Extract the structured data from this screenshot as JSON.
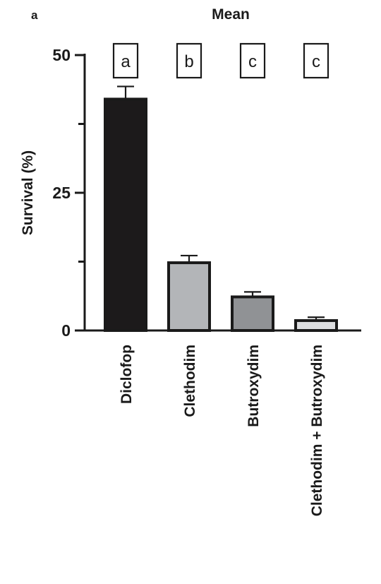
{
  "panel_label": "a",
  "chart_data": {
    "type": "bar",
    "title": "Mean",
    "ylabel": "Survival (%)",
    "xlabel": "",
    "ylim": [
      0,
      50
    ],
    "yticks_major": [
      0,
      25,
      50
    ],
    "yticks_minor": [
      12.5,
      37.5
    ],
    "categories": [
      "Diclofop",
      "Clethodim",
      "Butroxydim",
      "Clethodim + Butroxydim"
    ],
    "values": [
      42,
      12.3,
      6.1,
      1.8
    ],
    "errors": [
      2.3,
      1.3,
      0.9,
      0.6
    ],
    "significance_letters": [
      "a",
      "b",
      "c",
      "c"
    ],
    "colors": [
      "#1c1a1b",
      "#b3b5b8",
      "#909295",
      "#dcdddf"
    ],
    "edge_color": "#1a1a1a",
    "grid": false,
    "legend": "none"
  }
}
